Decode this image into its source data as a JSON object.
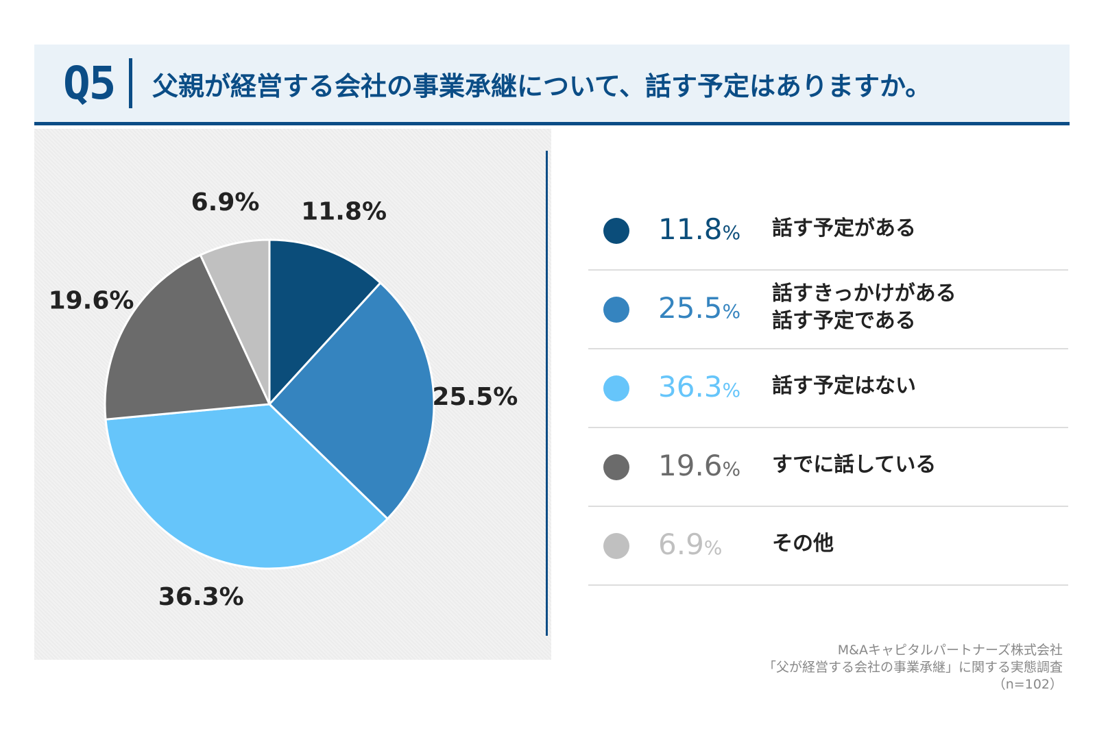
{
  "header": {
    "q_number": "Q5",
    "question": "父親が経営する会社の事業承継について、話す予定はありますか。"
  },
  "chart_data": {
    "type": "pie",
    "title": "父親が経営する会社の事業承継について、話す予定はありますか。",
    "categories": [
      "話す予定がある",
      "話すきっかけがある話す予定である",
      "話す予定はない",
      "すでに話している",
      "その他"
    ],
    "values": [
      11.8,
      25.5,
      36.3,
      19.6,
      6.9
    ],
    "data_labels": [
      "11.8%",
      "25.5%",
      "36.3%",
      "19.6%",
      "6.9%"
    ],
    "colors": [
      "#0b4d7a",
      "#3584bf",
      "#66c5fa",
      "#6b6b6b",
      "#c0c0c0"
    ],
    "unit": "%",
    "start_angle_deg": 0,
    "direction": "clockwise"
  },
  "legend": [
    {
      "value": "11.8",
      "unit": "%",
      "label_lines": [
        "話す予定がある"
      ],
      "color": "#0b4d7a"
    },
    {
      "value": "25.5",
      "unit": "%",
      "label_lines": [
        "話すきっかけがある",
        "話す予定である"
      ],
      "color": "#3584bf"
    },
    {
      "value": "36.3",
      "unit": "%",
      "label_lines": [
        "話す予定はない"
      ],
      "color": "#66c5fa"
    },
    {
      "value": "19.6",
      "unit": "%",
      "label_lines": [
        "すでに話している"
      ],
      "color": "#6b6b6b"
    },
    {
      "value": "6.9",
      "unit": "%",
      "label_lines": [
        "その他"
      ],
      "color": "#c0c0c0"
    }
  ],
  "source": {
    "company": "M&Aキャピタルパートナーズ株式会社",
    "survey": "「父が経営する会社の事業承継」に関する実態調査",
    "sample": "（n=102）"
  }
}
